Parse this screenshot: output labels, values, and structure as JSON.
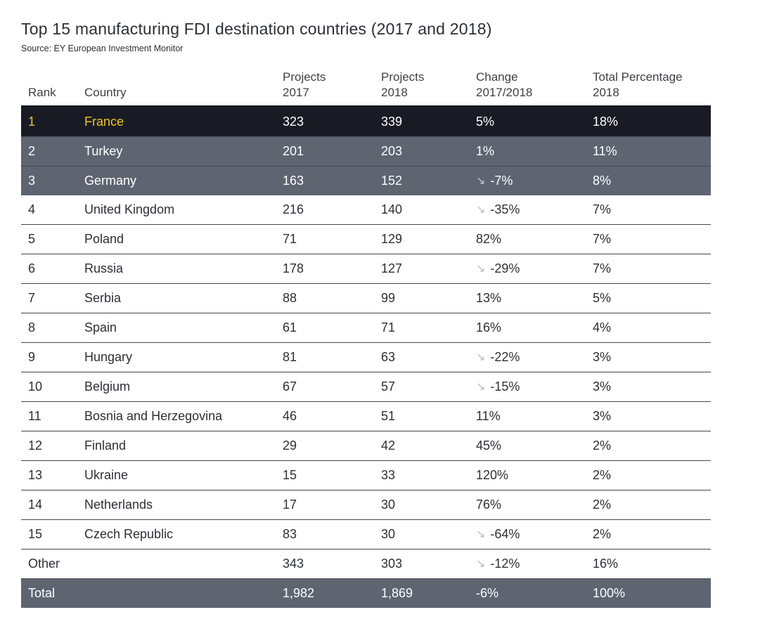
{
  "page": {
    "title": "Top 15 manufacturing FDI destination countries (2017 and 2018)",
    "source": "Source: EY European Investment Monitor"
  },
  "colors": {
    "highlight_row_bg": "#191b24",
    "highlight_text": "#efc327",
    "gray_row_bg": "#5e6571",
    "body_text": "#2e2e38",
    "arrow_gray": "#b7bac0"
  },
  "icons": {
    "decline_arrow": "down-right-arrow"
  },
  "chart_data": {
    "type": "table",
    "title": "Top 15 manufacturing FDI destination countries (2017 and 2018)",
    "source": "Source: EY European Investment Monitor",
    "columns": [
      {
        "line1": "",
        "line2": "Rank"
      },
      {
        "line1": "",
        "line2": "Country"
      },
      {
        "line1": "Projects",
        "line2": "2017"
      },
      {
        "line1": "Projects",
        "line2": "2018"
      },
      {
        "line1": "Change",
        "line2": "2017/2018"
      },
      {
        "line1": "Total Percentage",
        "line2": "2018"
      }
    ],
    "rows": [
      {
        "rank": "1",
        "country": "France",
        "projects_2017": "323",
        "projects_2018": "339",
        "change": "5%",
        "total_pct": "18%"
      },
      {
        "rank": "2",
        "country": "Turkey",
        "projects_2017": "201",
        "projects_2018": "203",
        "change": "1%",
        "total_pct": "11%"
      },
      {
        "rank": "3",
        "country": "Germany",
        "projects_2017": "163",
        "projects_2018": "152",
        "change": "-7%",
        "arrow_icon": "↘",
        "total_pct": "8%"
      },
      {
        "rank": "4",
        "country": "United Kingdom",
        "projects_2017": "216",
        "projects_2018": "140",
        "change": "-35%",
        "arrow_icon": "↘",
        "total_pct": "7%"
      },
      {
        "rank": "5",
        "country": "Poland",
        "projects_2017": "71",
        "projects_2018": "129",
        "change": "82%",
        "total_pct": "7%"
      },
      {
        "rank": "6",
        "country": "Russia",
        "projects_2017": "178",
        "projects_2018": "127",
        "change": "-29%",
        "arrow_icon": "↘",
        "total_pct": "7%"
      },
      {
        "rank": "7",
        "country": "Serbia",
        "projects_2017": "88",
        "projects_2018": "99",
        "change": "13%",
        "total_pct": "5%"
      },
      {
        "rank": "8",
        "country": "Spain",
        "projects_2017": "61",
        "projects_2018": "71",
        "change": "16%",
        "total_pct": "4%"
      },
      {
        "rank": "9",
        "country": "Hungary",
        "projects_2017": "81",
        "projects_2018": "63",
        "change": "-22%",
        "arrow_icon": "↘",
        "total_pct": "3%"
      },
      {
        "rank": "10",
        "country": "Belgium",
        "projects_2017": "67",
        "projects_2018": "57",
        "change": "-15%",
        "arrow_icon": "↘",
        "total_pct": "3%"
      },
      {
        "rank": "11",
        "country": "Bosnia and Herzegovina",
        "projects_2017": "46",
        "projects_2018": "51",
        "change": "11%",
        "total_pct": "3%"
      },
      {
        "rank": "12",
        "country": "Finland",
        "projects_2017": "29",
        "projects_2018": "42",
        "change": "45%",
        "total_pct": "2%"
      },
      {
        "rank": "13",
        "country": "Ukraine",
        "projects_2017": "15",
        "projects_2018": "33",
        "change": "120%",
        "total_pct": "2%"
      },
      {
        "rank": "14",
        "country": "Netherlands",
        "projects_2017": "17",
        "projects_2018": "30",
        "change": "76%",
        "total_pct": "2%"
      },
      {
        "rank": "15",
        "country": "Czech Republic",
        "projects_2017": "83",
        "projects_2018": "30",
        "change": "-64%",
        "arrow_icon": "↘",
        "total_pct": "2%"
      },
      {
        "rank": "Other",
        "country": "",
        "projects_2017": "343",
        "projects_2018": "303",
        "change": "-12%",
        "arrow_icon": "↘",
        "total_pct": "16%"
      },
      {
        "rank": "Total",
        "country": "",
        "projects_2017": "1,982",
        "projects_2018": "1,869",
        "change": "-6%",
        "total_pct": "100%"
      }
    ]
  }
}
